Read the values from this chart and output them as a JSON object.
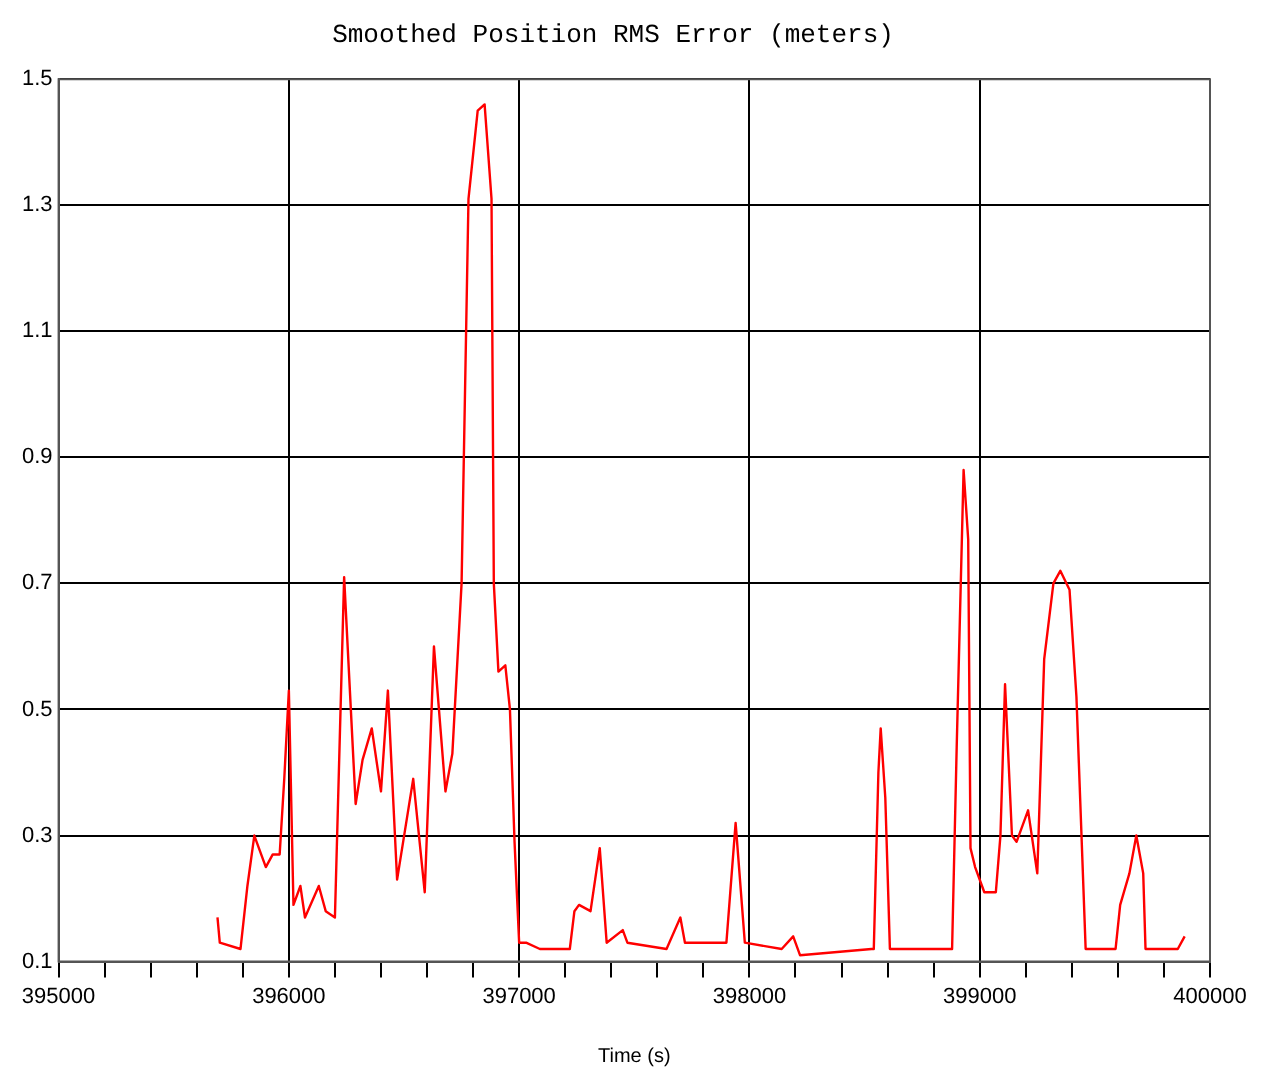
{
  "chart_data": {
    "type": "line",
    "title": "Smoothed Position RMS Error (meters)",
    "xlabel": "Time (s)",
    "xlim": [
      395000,
      400000
    ],
    "xticks": [
      395000,
      {
        "value": 395200,
        "label": null
      },
      {
        "value": 395400,
        "label": null
      },
      {
        "value": 395600,
        "label": null
      },
      {
        "value": 395800,
        "label": null
      },
      396000,
      {
        "value": 396200,
        "label": null
      },
      {
        "value": 396400,
        "label": null
      },
      {
        "value": 396600,
        "label": null
      },
      {
        "value": 396800,
        "label": null
      },
      397000,
      {
        "value": 397200,
        "label": null
      },
      {
        "value": 397400,
        "label": null
      },
      {
        "value": 397600,
        "label": null
      },
      {
        "value": 397800,
        "label": null
      },
      398000,
      {
        "value": 398200,
        "label": null
      },
      {
        "value": 398400,
        "label": null
      },
      {
        "value": 398600,
        "label": null
      },
      {
        "value": 398800,
        "label": null
      },
      399000,
      {
        "value": 399200,
        "label": null
      },
      {
        "value": 399400,
        "label": null
      },
      {
        "value": 399600,
        "label": null
      },
      {
        "value": 399800,
        "label": null
      },
      400000
    ],
    "ylim": [
      0.1,
      1.5
    ],
    "yticks": [
      0.1,
      0.3,
      0.5,
      0.7,
      0.9,
      1.1,
      1.3,
      1.5
    ],
    "grid": true,
    "marker": "none",
    "line_style": "solid",
    "series": [
      {
        "color": "#ff0000",
        "x": [
          395690,
          395700,
          395790,
          395820,
          395850,
          395900,
          395930,
          395960,
          395980,
          396000,
          396020,
          396050,
          396070,
          396130,
          396160,
          396200,
          396240,
          396290,
          396320,
          396360,
          396400,
          396430,
          396470,
          396540,
          396590,
          396630,
          396680,
          396710,
          396750,
          396780,
          396820,
          396850,
          396880,
          396890,
          396910,
          396940,
          396960,
          396980,
          397000,
          397030,
          397090,
          397140,
          397220,
          397240,
          397260,
          397310,
          397350,
          397380,
          397450,
          397470,
          397640,
          397700,
          397720,
          397900,
          397940,
          397980,
          398140,
          398190,
          398220,
          398530,
          398540,
          398560,
          398570,
          398590,
          398610,
          398880,
          398900,
          398930,
          398950,
          398960,
          398980,
          399020,
          399070,
          399090,
          399110,
          399140,
          399160,
          399210,
          399250,
          399280,
          399320,
          399350,
          399390,
          399420,
          399460,
          399590,
          399610,
          399650,
          399680,
          399710,
          399720,
          399860,
          399890
        ],
        "values": [
          0.17,
          0.13,
          0.12,
          0.22,
          0.3,
          0.25,
          0.27,
          0.27,
          0.39,
          0.53,
          0.19,
          0.22,
          0.17,
          0.22,
          0.18,
          0.17,
          0.71,
          0.35,
          0.42,
          0.47,
          0.37,
          0.53,
          0.23,
          0.39,
          0.21,
          0.6,
          0.37,
          0.43,
          0.7,
          1.31,
          1.45,
          1.46,
          1.31,
          0.7,
          0.56,
          0.57,
          0.5,
          0.29,
          0.13,
          0.13,
          0.12,
          0.12,
          0.12,
          0.18,
          0.19,
          0.18,
          0.28,
          0.13,
          0.15,
          0.13,
          0.12,
          0.17,
          0.13,
          0.13,
          0.32,
          0.13,
          0.12,
          0.14,
          0.11,
          0.12,
          0.12,
          0.4,
          0.47,
          0.36,
          0.12,
          0.12,
          0.44,
          0.88,
          0.77,
          0.28,
          0.25,
          0.21,
          0.21,
          0.3,
          0.54,
          0.3,
          0.29,
          0.34,
          0.24,
          0.58,
          0.7,
          0.72,
          0.69,
          0.52,
          0.12,
          0.12,
          0.19,
          0.24,
          0.3,
          0.24,
          0.12,
          0.12,
          0.14
        ]
      }
    ]
  }
}
